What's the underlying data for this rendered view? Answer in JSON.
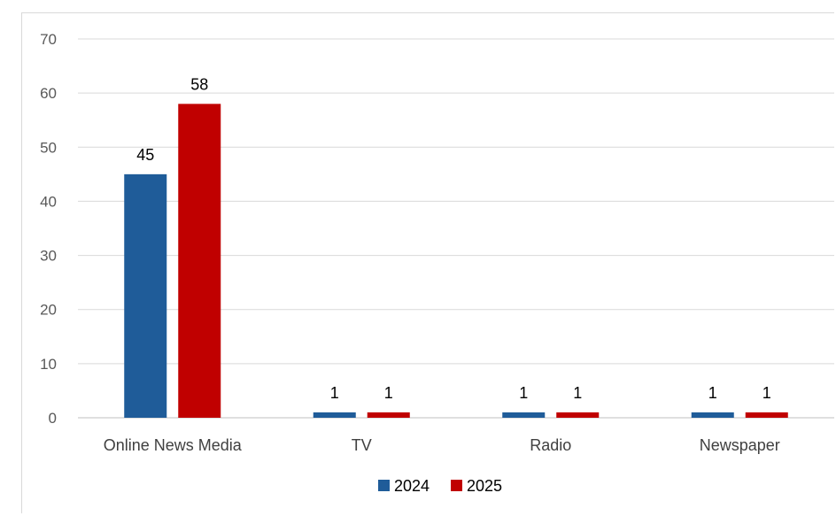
{
  "chart_data": {
    "type": "bar",
    "categories": [
      "Online News Media",
      "TV",
      "Radio",
      "Newspaper"
    ],
    "series": [
      {
        "name": "2024",
        "values": [
          45,
          1,
          1,
          1
        ],
        "color": "#1f5c99"
      },
      {
        "name": "2025",
        "values": [
          58,
          1,
          1,
          1
        ],
        "color": "#c00000"
      }
    ],
    "title": "",
    "xlabel": "",
    "ylabel": "",
    "ylim": [
      0,
      70
    ],
    "yticks": [
      0,
      10,
      20,
      30,
      40,
      50,
      60,
      70
    ],
    "grid": true,
    "data_labels": true,
    "legend_position": "bottom"
  }
}
